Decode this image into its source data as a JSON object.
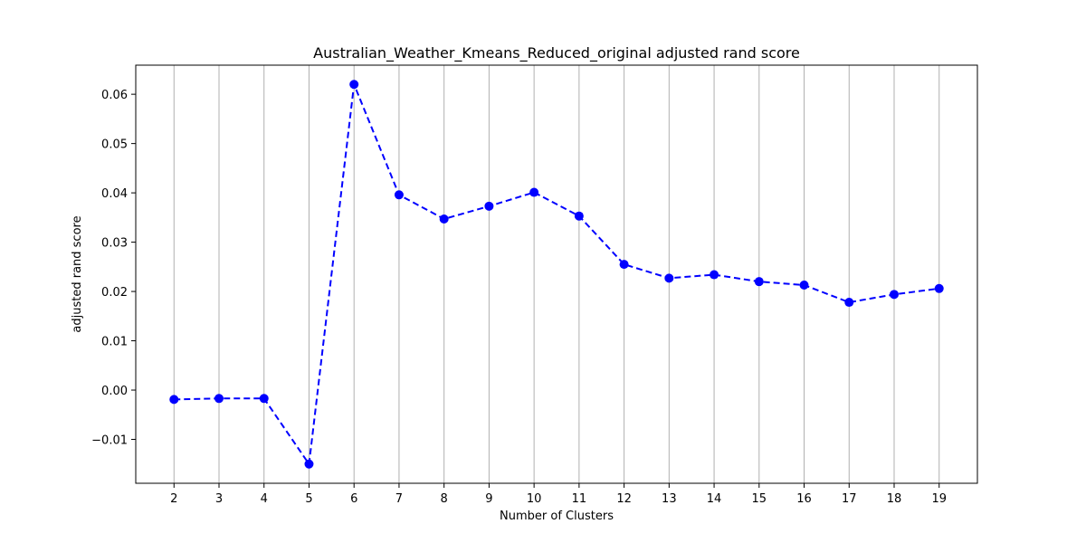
{
  "chart_data": {
    "type": "line",
    "title": "Australian_Weather_Kmeans_Reduced_original adjusted rand score",
    "xlabel": "Number of Clusters",
    "ylabel": "adjusted rand score",
    "x": [
      2,
      3,
      4,
      5,
      6,
      7,
      8,
      9,
      10,
      11,
      12,
      13,
      14,
      15,
      16,
      17,
      18,
      19
    ],
    "series": [
      {
        "values": [
          -0.0019,
          -0.0017,
          -0.0017,
          -0.015,
          0.062,
          0.0396,
          0.0347,
          0.0373,
          0.0401,
          0.0353,
          0.0255,
          0.0227,
          0.0234,
          0.022,
          0.0213,
          0.0178,
          0.0194,
          0.0206
        ],
        "color": "#0000ff",
        "line_style": "dashed",
        "marker": "circle"
      }
    ],
    "xticks": [
      "2",
      "3",
      "4",
      "5",
      "6",
      "7",
      "8",
      "9",
      "10",
      "11",
      "12",
      "13",
      "14",
      "15",
      "16",
      "17",
      "18",
      "19"
    ],
    "yticks": [
      "−0.01",
      "0.00",
      "0.01",
      "0.02",
      "0.03",
      "0.04",
      "0.05",
      "0.06"
    ],
    "ytick_values": [
      -0.01,
      0.0,
      0.01,
      0.02,
      0.03,
      0.04,
      0.05,
      0.06
    ],
    "xlim": [
      1.15,
      19.85
    ],
    "ylim": [
      -0.0189,
      0.0659
    ],
    "grid": "vertical",
    "grid_color": "#b0b0b0",
    "legend": false
  }
}
